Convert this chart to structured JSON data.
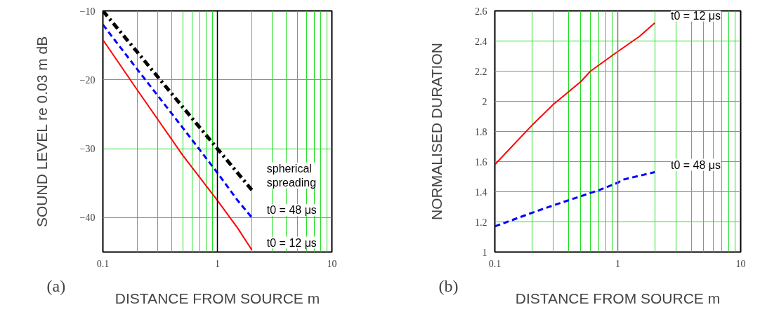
{
  "chart_data": [
    {
      "type": "line",
      "xlabel": "DISTANCE FROM SOURCE m",
      "ylabel": "SOUND LEVEL re 0.03 m dB",
      "annotations": [
        "(a)"
      ],
      "log": "x",
      "grid": true,
      "xlim": [
        0.1,
        10
      ],
      "ylim": [
        -45,
        -10
      ],
      "xticks": [
        0.1,
        {
          "value": 0.2,
          "label": null
        },
        {
          "value": 0.3,
          "label": null
        },
        {
          "value": 0.4,
          "label": null
        },
        {
          "value": 0.5,
          "label": null
        },
        {
          "value": 0.6,
          "label": null
        },
        {
          "value": 0.7,
          "label": null
        },
        {
          "value": 0.8,
          "label": null
        },
        {
          "value": 0.9,
          "label": null
        },
        1,
        {
          "value": 2,
          "label": null
        },
        {
          "value": 3,
          "label": null
        },
        {
          "value": 4,
          "label": null
        },
        {
          "value": 5,
          "label": null
        },
        {
          "value": 6,
          "label": null
        },
        {
          "value": 7,
          "label": null
        },
        {
          "value": 8,
          "label": null
        },
        {
          "value": 9,
          "label": null
        },
        10
      ],
      "yticks": [
        {
          "value": -10,
          "label": "−10"
        },
        {
          "value": -20,
          "label": "−20"
        },
        {
          "value": -30,
          "label": "−30"
        },
        {
          "value": -40,
          "label": "−40"
        }
      ],
      "ref_lines": [
        {
          "axis": "x",
          "value": 1,
          "label": null,
          "color": "#000000"
        }
      ],
      "series": [
        {
          "name": "spherical\nspreading",
          "color": "#000000",
          "line_style": "dashdot",
          "x": [
            0.1,
            0.2,
            0.5,
            1,
            2
          ],
          "values": [
            -10,
            -16,
            -24,
            -30,
            -36
          ]
        },
        {
          "name": "t0 = 48 μs",
          "color": "#0000ff",
          "line_style": "dashed",
          "x": [
            0.1,
            0.2,
            0.5,
            1,
            1.5,
            2
          ],
          "values": [
            -12,
            -18.5,
            -27,
            -33.5,
            -37.5,
            -40
          ]
        },
        {
          "name": "t0 = 12 μs",
          "color": "#ff0000",
          "line_style": "solid",
          "x": [
            0.1,
            0.2,
            0.5,
            1,
            1.5,
            2
          ],
          "values": [
            -14.2,
            -21.5,
            -31,
            -37.5,
            -41.5,
            -44.7
          ]
        }
      ]
    },
    {
      "type": "line",
      "xlabel": "DISTANCE FROM SOURCE m",
      "ylabel": "NORMALISED DURATION",
      "annotations": [
        "(b)"
      ],
      "log": "x",
      "grid": true,
      "xlim": [
        0.1,
        10
      ],
      "ylim": [
        1,
        2.6
      ],
      "xticks": [
        0.1,
        {
          "value": 0.2,
          "label": null
        },
        {
          "value": 0.3,
          "label": null
        },
        {
          "value": 0.4,
          "label": null
        },
        {
          "value": 0.5,
          "label": null
        },
        {
          "value": 0.6,
          "label": null
        },
        {
          "value": 0.7,
          "label": null
        },
        {
          "value": 0.8,
          "label": null
        },
        {
          "value": 0.9,
          "label": null
        },
        1,
        {
          "value": 2,
          "label": null
        },
        {
          "value": 3,
          "label": null
        },
        {
          "value": 4,
          "label": null
        },
        {
          "value": 5,
          "label": null
        },
        {
          "value": 6,
          "label": null
        },
        {
          "value": 7,
          "label": null
        },
        {
          "value": 8,
          "label": null
        },
        {
          "value": 9,
          "label": null
        },
        10
      ],
      "yticks": [
        1,
        1.2,
        1.4,
        1.6,
        1.8,
        2,
        2.2,
        2.4,
        2.6
      ],
      "ref_lines": [
        {
          "axis": "x",
          "value": 1,
          "label": null,
          "color": "#808080"
        }
      ],
      "series": [
        {
          "name": "t0 = 12 μs",
          "color": "#ff0000",
          "line_style": "solid",
          "x": [
            0.1,
            0.2,
            0.3,
            0.5,
            0.6,
            1,
            1.5,
            2
          ],
          "values": [
            1.58,
            1.84,
            1.98,
            2.13,
            2.2,
            2.33,
            2.43,
            2.52
          ]
        },
        {
          "name": "t0 = 48 μs",
          "color": "#0000ff",
          "line_style": "dashed",
          "x": [
            0.1,
            0.2,
            0.3,
            0.5,
            0.7,
            1,
            1.1,
            2
          ],
          "values": [
            1.17,
            1.26,
            1.31,
            1.37,
            1.41,
            1.46,
            1.48,
            1.53
          ]
        }
      ]
    }
  ]
}
